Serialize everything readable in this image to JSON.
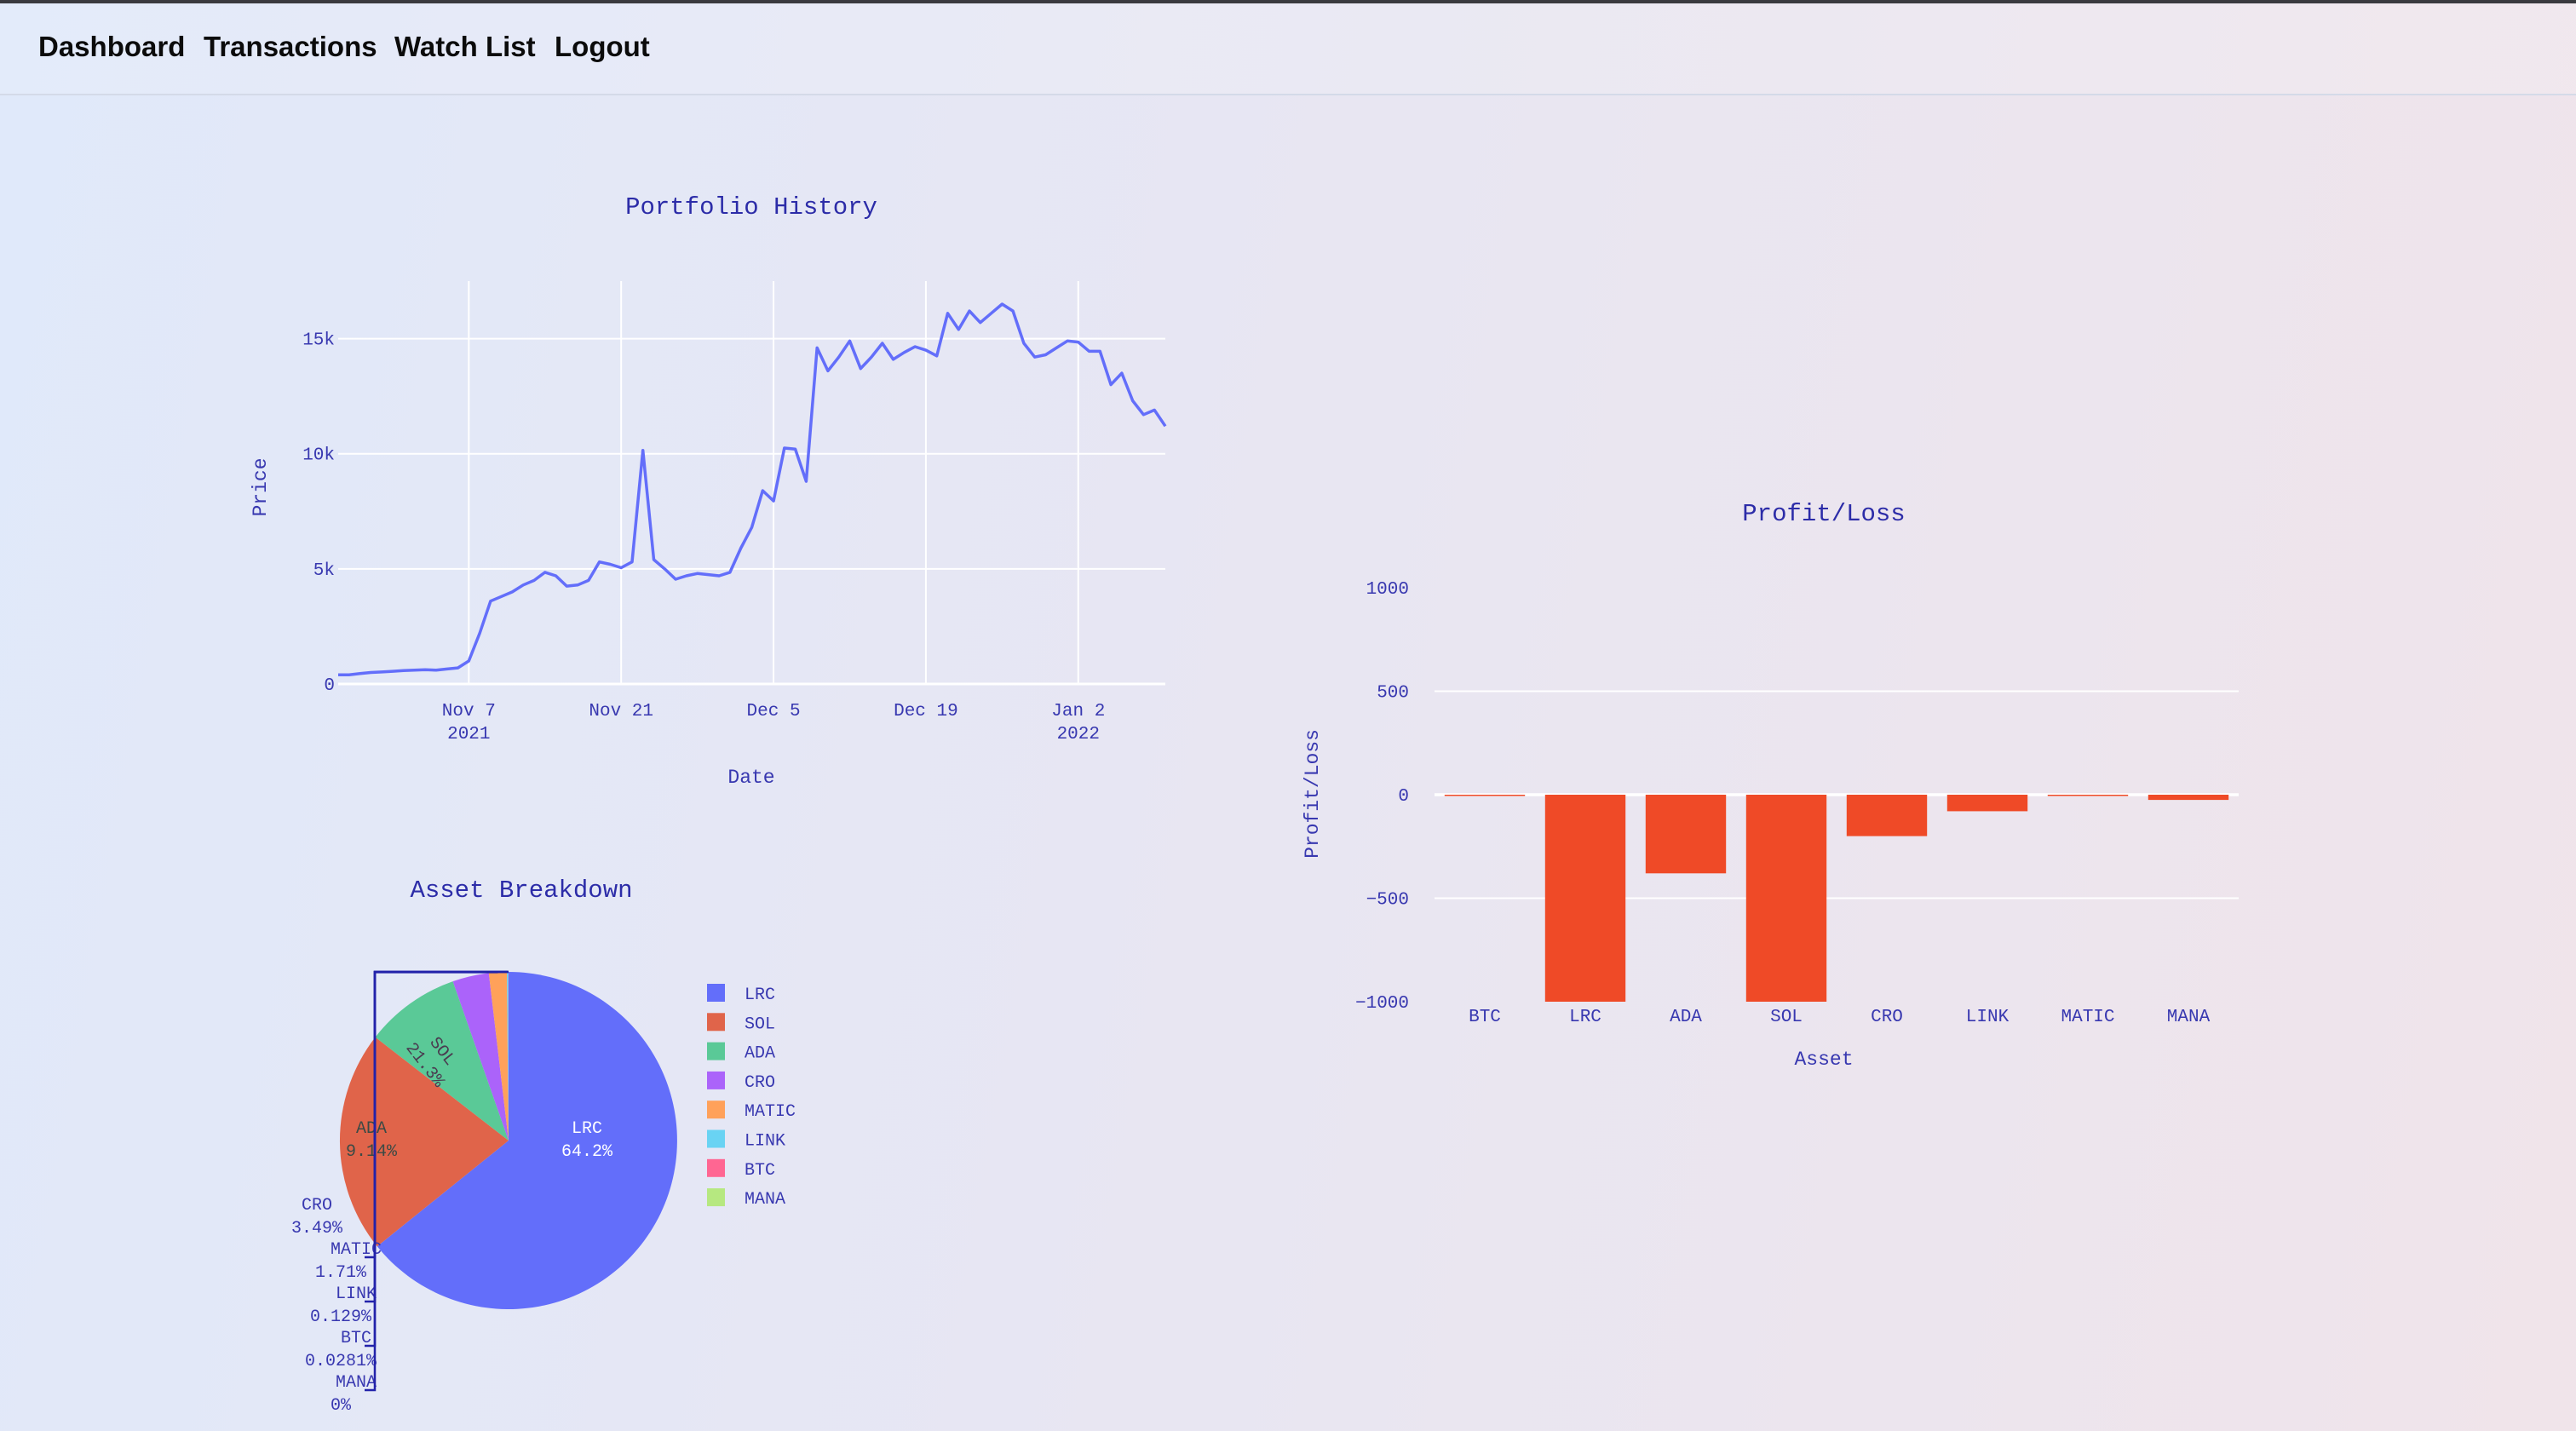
{
  "nav": {
    "items": [
      {
        "label": "Dashboard"
      },
      {
        "label": "Transactions"
      },
      {
        "label": "Watch List"
      },
      {
        "label": "Logout"
      }
    ]
  },
  "colors": {
    "line": "#636efa",
    "bar": "#ef4a27",
    "title_text": "#2c2ca8",
    "tick_text": "#3838b0",
    "grid": "#ffffff",
    "pie": [
      "#636efa",
      "#e0644a",
      "#5ac997",
      "#ab63fa",
      "#ffa15a",
      "#69d3f3",
      "#ff6692",
      "#b6e880"
    ]
  },
  "chart_data": [
    {
      "type": "line",
      "title": "Portfolio History",
      "xlabel": "Date",
      "ylabel": "Price",
      "ylim": [
        0,
        17500
      ],
      "xlim": [
        "2021-10-26",
        "2022-01-10"
      ],
      "grid": true,
      "x_ticks": [
        {
          "value": "2021-11-07",
          "line1": "Nov 7",
          "line2": "2021"
        },
        {
          "value": "2021-11-21",
          "line1": "Nov 21",
          "line2": ""
        },
        {
          "value": "2021-12-05",
          "line1": "Dec 5",
          "line2": ""
        },
        {
          "value": "2021-12-19",
          "line1": "Dec 19",
          "line2": ""
        },
        {
          "value": "2022-01-02",
          "line1": "Jan 2",
          "line2": "2022"
        }
      ],
      "y_ticks": [
        {
          "value": 0,
          "label": "0"
        },
        {
          "value": 5000,
          "label": "5k"
        },
        {
          "value": 10000,
          "label": "10k"
        },
        {
          "value": 15000,
          "label": "15k"
        }
      ],
      "series": [
        {
          "x": [
            "2021-10-26",
            "2021-10-27",
            "2021-10-28",
            "2021-10-29",
            "2021-10-30",
            "2021-10-31",
            "2021-11-01",
            "2021-11-02",
            "2021-11-03",
            "2021-11-04",
            "2021-11-05",
            "2021-11-06",
            "2021-11-07",
            "2021-11-08",
            "2021-11-09",
            "2021-11-10",
            "2021-11-11",
            "2021-11-12",
            "2021-11-13",
            "2021-11-14",
            "2021-11-15",
            "2021-11-16",
            "2021-11-17",
            "2021-11-18",
            "2021-11-19",
            "2021-11-20",
            "2021-11-21",
            "2021-11-22",
            "2021-11-23",
            "2021-11-24",
            "2021-11-25",
            "2021-11-26",
            "2021-11-27",
            "2021-11-28",
            "2021-11-29",
            "2021-11-30",
            "2021-12-01",
            "2021-12-02",
            "2021-12-03",
            "2021-12-04",
            "2021-12-05",
            "2021-12-06",
            "2021-12-07",
            "2021-12-08",
            "2021-12-09",
            "2021-12-10",
            "2021-12-11",
            "2021-12-12",
            "2021-12-13",
            "2021-12-14",
            "2021-12-15",
            "2021-12-16",
            "2021-12-17",
            "2021-12-18",
            "2021-12-19",
            "2021-12-20",
            "2021-12-21",
            "2021-12-22",
            "2021-12-23",
            "2021-12-24",
            "2021-12-25",
            "2021-12-26",
            "2021-12-27",
            "2021-12-28",
            "2021-12-29",
            "2021-12-30",
            "2021-12-31",
            "2022-01-01",
            "2022-01-02",
            "2022-01-03",
            "2022-01-04",
            "2022-01-05",
            "2022-01-06",
            "2022-01-07",
            "2022-01-08",
            "2022-01-09",
            "2022-01-10"
          ],
          "y": [
            400,
            400,
            450,
            500,
            520,
            550,
            580,
            600,
            620,
            600,
            650,
            700,
            1000,
            2200,
            3600,
            3800,
            4000,
            4300,
            4500,
            4850,
            4700,
            4250,
            4300,
            4500,
            5300,
            5200,
            5050,
            5300,
            10150,
            5400,
            5000,
            4550,
            4700,
            4800,
            4750,
            4700,
            4850,
            5900,
            6800,
            8400,
            7950,
            10250,
            10200,
            8800,
            14600,
            13600,
            14200,
            14900,
            13700,
            14200,
            14800,
            14100,
            14400,
            14650,
            14500,
            14250,
            16100,
            15400,
            16200,
            15700,
            16100,
            16500,
            16200,
            14800,
            14200,
            14300,
            14600,
            14900,
            14850,
            14450,
            14450,
            13000,
            13500,
            12300,
            11700,
            11900,
            11200
          ]
        }
      ]
    },
    {
      "type": "pie",
      "title": "Asset Breakdown",
      "legend": "right",
      "slices": [
        {
          "label": "LRC",
          "value": 64.2,
          "text": "64.2%"
        },
        {
          "label": "SOL",
          "value": 21.3,
          "text": "21.3%"
        },
        {
          "label": "ADA",
          "value": 9.14,
          "text": "9.14%"
        },
        {
          "label": "CRO",
          "value": 3.49,
          "text": "3.49%"
        },
        {
          "label": "MATIC",
          "value": 1.71,
          "text": "1.71%"
        },
        {
          "label": "LINK",
          "value": 0.129,
          "text": "0.129%"
        },
        {
          "label": "BTC",
          "value": 0.0281,
          "text": "0.0281%"
        },
        {
          "label": "MANA",
          "value": 0,
          "text": "0%"
        }
      ]
    },
    {
      "type": "bar",
      "title": "Profit/Loss",
      "xlabel": "Asset",
      "ylabel": "Profit/Loss",
      "ylim": [
        -1000,
        1000
      ],
      "grid": true,
      "y_ticks": [
        {
          "value": 1000,
          "label": "1000"
        },
        {
          "value": 500,
          "label": "500"
        },
        {
          "value": 0,
          "label": "0"
        },
        {
          "value": -500,
          "label": "−500"
        },
        {
          "value": -1000,
          "label": "−1000"
        }
      ],
      "categories": [
        "BTC",
        "LRC",
        "ADA",
        "SOL",
        "CRO",
        "LINK",
        "MATIC",
        "MANA"
      ],
      "values": [
        -2,
        -1000,
        -380,
        -1000,
        -200,
        -80,
        -3,
        -25
      ]
    }
  ]
}
